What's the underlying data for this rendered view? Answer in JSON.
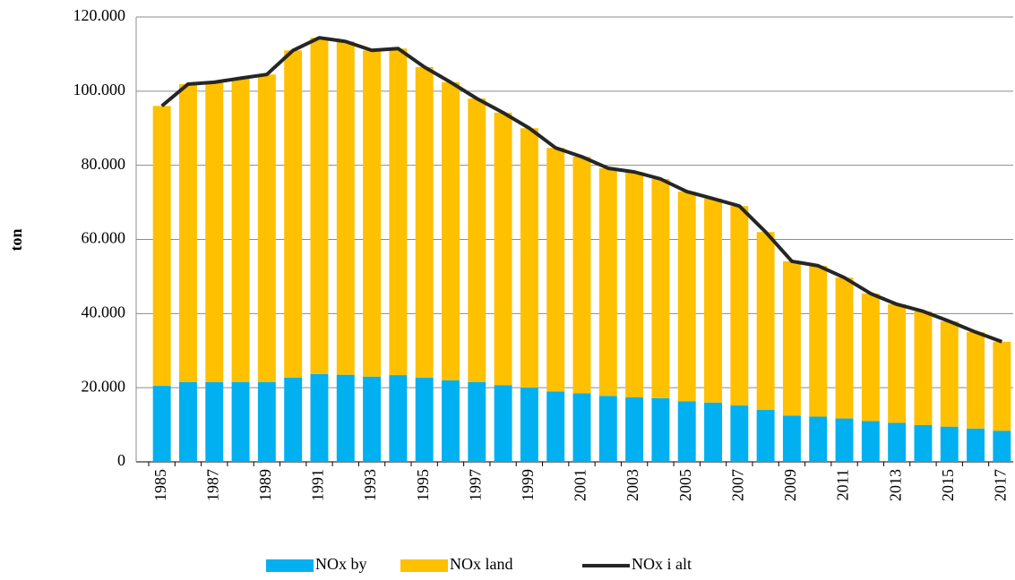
{
  "chart_data": {
    "type": "bar_line",
    "ylabel": "ton",
    "categories": [
      "1985",
      null,
      "1987",
      null,
      "1989",
      null,
      "1991",
      null,
      "1993",
      null,
      "1995",
      null,
      "1997",
      null,
      "1999",
      null,
      "2001",
      null,
      "2003",
      null,
      "2005",
      null,
      "2007",
      null,
      "2009",
      null,
      "2011",
      null,
      "2013",
      null,
      "2015",
      null,
      "2017"
    ],
    "series": [
      {
        "name": "NOx by",
        "color": "#00b0f0",
        "kind": "bar",
        "values": [
          20500,
          21500,
          21500,
          21500,
          21500,
          22700,
          23700,
          23500,
          23000,
          23400,
          22700,
          22000,
          21500,
          20700,
          20000,
          19000,
          18500,
          17800,
          17400,
          17200,
          16300,
          16000,
          15200,
          14000,
          12500,
          12200,
          11700,
          11000,
          10500,
          9900,
          9500,
          9000,
          8400
        ]
      },
      {
        "name": "NOx land",
        "color": "#ffc000",
        "kind": "bar",
        "values": [
          75500,
          80400,
          80900,
          82000,
          83000,
          88300,
          90700,
          89900,
          88000,
          88100,
          83800,
          80400,
          76500,
          73500,
          70000,
          65700,
          63800,
          61400,
          60800,
          59100,
          56600,
          55000,
          53800,
          48000,
          41600,
          40700,
          38000,
          34400,
          32000,
          30700,
          28400,
          26000,
          24000
        ]
      },
      {
        "name": "NOx i alt",
        "color": "#262626",
        "kind": "line",
        "values": [
          96000,
          101900,
          102400,
          103500,
          104500,
          111000,
          114400,
          113400,
          111000,
          111500,
          106500,
          102400,
          98000,
          94200,
          90000,
          84700,
          82300,
          79200,
          78200,
          76300,
          72900,
          71000,
          69000,
          62000,
          54100,
          52900,
          49700,
          45400,
          42500,
          40600,
          37900,
          35000,
          32400
        ]
      }
    ],
    "ylim": [
      0,
      120000
    ],
    "yticks": [
      0,
      {
        "value": 20000,
        "label": "20.000"
      },
      {
        "value": 40000,
        "label": "40.000"
      },
      {
        "value": 60000,
        "label": "60.000"
      },
      {
        "value": 80000,
        "label": "80.000"
      },
      {
        "value": 100000,
        "label": "100.000"
      },
      {
        "value": 120000,
        "label": "120.000"
      }
    ],
    "grid": true,
    "legend": "bottom"
  }
}
